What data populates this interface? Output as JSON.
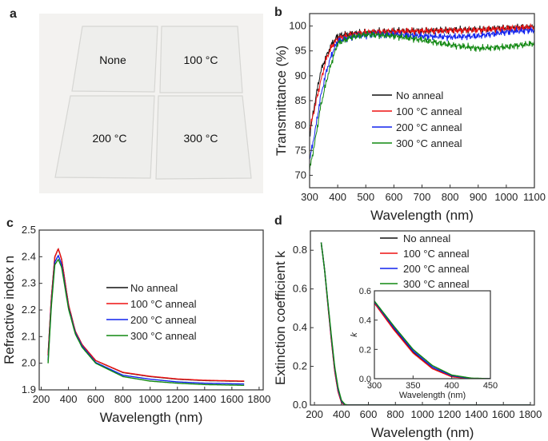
{
  "panel_labels": {
    "a": "a",
    "b": "b",
    "c": "c",
    "d": "d"
  },
  "photo": {
    "sample_labels": [
      "None",
      "100 °C",
      "200 °C",
      "300 °C"
    ],
    "background": "#f4f3f1",
    "glass": "#efefed"
  },
  "colors": {
    "none": "#111111",
    "c100": "#ee1111",
    "c200": "#1122ee",
    "c300": "#118811"
  },
  "chart_data": [
    {
      "id": "b",
      "type": "line",
      "xlabel": "Wavelength (nm)",
      "ylabel": "Transmittance (%)",
      "xlim": [
        300,
        1100
      ],
      "ylim": [
        67.5,
        102.5
      ],
      "xticks": [
        300,
        400,
        500,
        600,
        700,
        800,
        900,
        1000,
        1100
      ],
      "yticks": [
        70,
        75,
        80,
        85,
        90,
        95,
        100
      ],
      "legend": "center",
      "series": [
        {
          "name": "No anneal",
          "color": "#111111",
          "x": [
            300,
            320,
            340,
            360,
            380,
            400,
            450,
            500,
            600,
            700,
            800,
            900,
            1000,
            1100
          ],
          "y": [
            78,
            85,
            91,
            94,
            96.5,
            98,
            98.5,
            98.7,
            99,
            99,
            99.2,
            99.3,
            99.6,
            99.8
          ]
        },
        {
          "name": "100 °C anneal",
          "color": "#ee1111",
          "x": [
            300,
            320,
            340,
            360,
            380,
            400,
            450,
            500,
            600,
            700,
            800,
            900,
            1000,
            1100
          ],
          "y": [
            79,
            84,
            89,
            93.5,
            96,
            97.5,
            98.3,
            98.7,
            98.9,
            99,
            99.1,
            99.2,
            99.5,
            99.8
          ]
        },
        {
          "name": "200 °C anneal",
          "color": "#1122ee",
          "x": [
            300,
            320,
            340,
            360,
            380,
            400,
            450,
            500,
            600,
            700,
            800,
            900,
            1000,
            1100
          ],
          "y": [
            73,
            79,
            86,
            91,
            94.5,
            97,
            97.8,
            98.2,
            98.3,
            98,
            97.8,
            98,
            98.8,
            99.2
          ]
        },
        {
          "name": "300 °C anneal",
          "color": "#118811",
          "x": [
            300,
            320,
            340,
            360,
            380,
            400,
            450,
            500,
            600,
            700,
            800,
            900,
            1000,
            1100
          ],
          "y": [
            71,
            77,
            84,
            89,
            93,
            96.5,
            97.8,
            98.3,
            98,
            97.2,
            96.2,
            95.5,
            95.8,
            96.5
          ]
        }
      ]
    },
    {
      "id": "c",
      "type": "line",
      "xlabel": "Wavelength (nm)",
      "ylabel": "Refractive index n",
      "xlim": [
        185,
        1830
      ],
      "ylim": [
        1.9,
        2.5
      ],
      "xticks": [
        200,
        400,
        600,
        800,
        1000,
        1200,
        1400,
        1600,
        1800
      ],
      "yticks": [
        1.9,
        2.0,
        2.1,
        2.2,
        2.3,
        2.4,
        2.5
      ],
      "legend": "center-right",
      "series": [
        {
          "name": "No anneal",
          "color": "#111111",
          "x": [
            250,
            275,
            300,
            325,
            350,
            400,
            450,
            500,
            600,
            800,
            1000,
            1200,
            1400,
            1690
          ],
          "y": [
            2.03,
            2.25,
            2.4,
            2.43,
            2.39,
            2.22,
            2.12,
            2.07,
            2.01,
            1.965,
            1.95,
            1.94,
            1.935,
            1.932
          ]
        },
        {
          "name": "100 °C anneal",
          "color": "#ee1111",
          "x": [
            250,
            275,
            300,
            325,
            350,
            400,
            450,
            500,
            600,
            800,
            1000,
            1200,
            1400,
            1690
          ],
          "y": [
            2.03,
            2.25,
            2.4,
            2.43,
            2.39,
            2.22,
            2.12,
            2.07,
            2.01,
            1.966,
            1.951,
            1.941,
            1.936,
            1.933
          ]
        },
        {
          "name": "200 °C anneal",
          "color": "#1122ee",
          "x": [
            250,
            275,
            300,
            325,
            350,
            400,
            450,
            500,
            600,
            800,
            1000,
            1200,
            1400,
            1690
          ],
          "y": [
            2.01,
            2.23,
            2.38,
            2.405,
            2.37,
            2.21,
            2.115,
            2.065,
            2.003,
            1.955,
            1.94,
            1.93,
            1.925,
            1.922
          ]
        },
        {
          "name": "300 °C anneal",
          "color": "#118811",
          "x": [
            250,
            275,
            300,
            325,
            350,
            400,
            450,
            500,
            600,
            800,
            1000,
            1200,
            1400,
            1690
          ],
          "y": [
            2.0,
            2.22,
            2.37,
            2.39,
            2.36,
            2.205,
            2.11,
            2.06,
            2.0,
            1.95,
            1.933,
            1.925,
            1.92,
            1.917
          ]
        }
      ]
    },
    {
      "id": "d",
      "type": "line",
      "xlabel": "Wavelength (nm)",
      "ylabel": "Extinction coefficient k",
      "xlim": [
        170,
        1830
      ],
      "ylim": [
        0,
        0.9
      ],
      "xticks": [
        200,
        400,
        600,
        800,
        1000,
        1200,
        1400,
        1600,
        1800
      ],
      "yticks": [
        0.0,
        0.2,
        0.4,
        0.6,
        0.8
      ],
      "legend": "top",
      "series": [
        {
          "name": "No anneal",
          "color": "#111111",
          "x": [
            250,
            275,
            300,
            325,
            350,
            375,
            400,
            425,
            450,
            1800
          ],
          "y": [
            0.84,
            0.7,
            0.52,
            0.34,
            0.18,
            0.07,
            0.015,
            0,
            0,
            0
          ]
        },
        {
          "name": "100 °C anneal",
          "color": "#ee1111",
          "x": [
            250,
            275,
            300,
            325,
            350,
            375,
            400,
            425,
            450,
            1800
          ],
          "y": [
            0.84,
            0.7,
            0.515,
            0.335,
            0.175,
            0.068,
            0.013,
            0,
            0,
            0
          ]
        },
        {
          "name": "200 °C anneal",
          "color": "#1122ee",
          "x": [
            250,
            275,
            300,
            325,
            350,
            375,
            400,
            425,
            450,
            1800
          ],
          "y": [
            0.84,
            0.7,
            0.525,
            0.35,
            0.19,
            0.08,
            0.02,
            0.002,
            0,
            0
          ]
        },
        {
          "name": "300 °C anneal",
          "color": "#118811",
          "x": [
            250,
            275,
            300,
            325,
            350,
            375,
            400,
            425,
            450,
            1800
          ],
          "y": [
            0.84,
            0.7,
            0.53,
            0.36,
            0.2,
            0.09,
            0.025,
            0.004,
            0,
            0
          ]
        }
      ],
      "inset": {
        "xlabel": "Wavelength (nm)",
        "ylabel": "k",
        "xlim": [
          300,
          450
        ],
        "ylim": [
          0,
          0.6
        ],
        "xticks": [
          300,
          350,
          400,
          450
        ],
        "yticks": [
          0.0,
          0.2,
          0.4,
          0.6
        ]
      }
    }
  ]
}
